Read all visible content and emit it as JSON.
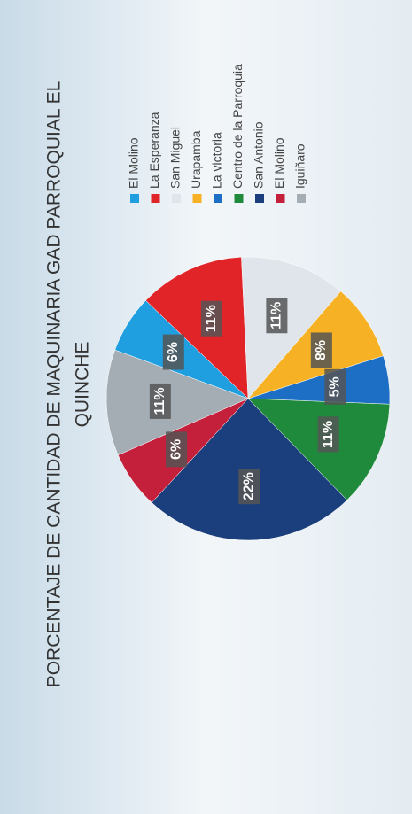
{
  "chart_data": {
    "type": "pie",
    "title": [
      "PORCENTAJE DE CANTIDAD DE MAQUINARIA GAD PARROQUIAL EL",
      "QUINCHE"
    ],
    "categories": [
      "El Molino",
      "La Esperanza",
      "San Miguel",
      "Urapamba",
      "La victoria",
      "Centro de la Parroquia",
      "San Antonio",
      "El Molino",
      "Iguiñaro"
    ],
    "values": [
      6,
      11,
      11,
      8,
      5,
      11,
      22,
      6,
      11
    ],
    "value_labels": [
      "6%",
      "11%",
      "11%",
      "8%",
      "5%",
      "11%",
      "22%",
      "6%",
      "11%"
    ],
    "colors": [
      "#1f9fe0",
      "#e02428",
      "#dfe5ea",
      "#f6b224",
      "#1c6fc4",
      "#1f8a3c",
      "#1b3f7c",
      "#c4203c",
      "#a4acb4"
    ],
    "legend": "right"
  }
}
